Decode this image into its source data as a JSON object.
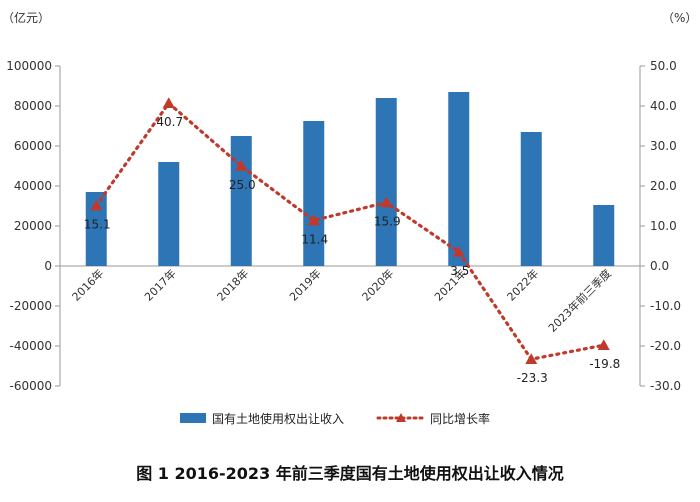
{
  "caption": "图 1 2016-2023 年前三季度国有土地使用权出让收入情况",
  "chart_data": {
    "type": "bar",
    "categories": [
      "2016年",
      "2017年",
      "2018年",
      "2019年",
      "2020年",
      "2021年",
      "2022年",
      "2023年前三季度"
    ],
    "left_unit": "（亿元）",
    "right_unit": "（%）",
    "ylim_left": [
      -60000,
      100000
    ],
    "ylim_right": [
      -30,
      50
    ],
    "yticks_left": [
      "100000",
      "80000",
      "60000",
      "40000",
      "20000",
      "0",
      "-20000",
      "-40000",
      "-60000"
    ],
    "yticks_right": [
      "50.0",
      "40.0",
      "30.0",
      "20.0",
      "10.0",
      "0.0",
      "-10.0",
      "-20.0",
      "-30.0"
    ],
    "series": [
      {
        "name": "国有土地使用权出让收入",
        "type": "bar",
        "axis": "left",
        "color": "#2e75b6",
        "values": [
          37000,
          52000,
          65000,
          72500,
          84000,
          87000,
          67000,
          30500
        ]
      },
      {
        "name": "同比增长率",
        "type": "line",
        "axis": "right",
        "color": "#c0392b",
        "values": [
          15.1,
          40.7,
          25.0,
          11.4,
          15.9,
          3.5,
          -23.3,
          -19.8
        ],
        "labels": [
          "15.1",
          "40.7",
          "25.0",
          "11.4",
          "15.9",
          "3.5",
          "-23.3",
          "-19.8"
        ]
      }
    ],
    "grid": false,
    "legend_position": "bottom"
  }
}
